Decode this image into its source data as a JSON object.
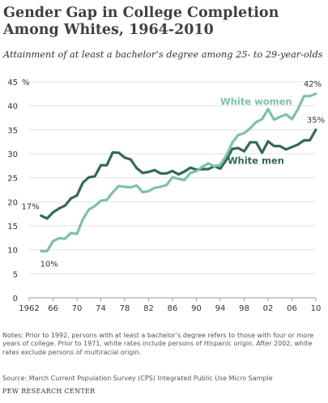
{
  "title": "Gender Gap in College Completion Among Whites, 1964-2010",
  "subtitle": "Attainment of at least a bachelor’s degree among 25- to 29-year-olds",
  "notes": "Notes: Prior to 1992, persons with at least a bachelor’s degree refers to those with four or more years of college. Prior to 1971, white rates include persons of Hispanic origin. After 2002, white rates exclude persons of multiracial origin.",
  "source": "Source: March Current Population Survey (CPS) Integrated Public Use Micro Sample",
  "credit": "PEW RESEARCH CENTER",
  "colors": {
    "white_men": "#336a52",
    "white_women": "#7fc2a2"
  },
  "chart_data": {
    "type": "line",
    "ylim": [
      0,
      45
    ],
    "xlim": [
      1962,
      2010
    ],
    "y_unit_label": "%",
    "yticks": [
      0,
      5,
      10,
      15,
      20,
      25,
      30,
      35,
      40,
      45
    ],
    "xticks": [
      {
        "value": 1962,
        "label": "1962"
      },
      {
        "value": 1966,
        "label": "66"
      },
      {
        "value": 1970,
        "label": "70"
      },
      {
        "value": 1974,
        "label": "74"
      },
      {
        "value": 1978,
        "label": "78"
      },
      {
        "value": 1982,
        "label": "82"
      },
      {
        "value": 1986,
        "label": "86"
      },
      {
        "value": 1990,
        "label": "90"
      },
      {
        "value": 1994,
        "label": "94"
      },
      {
        "value": 1998,
        "label": "98"
      },
      {
        "value": 2002,
        "label": "02"
      },
      {
        "value": 2006,
        "label": "06"
      },
      {
        "value": 2010,
        "label": "10"
      }
    ],
    "x": [
      1964,
      1965,
      1966,
      1967,
      1968,
      1969,
      1970,
      1971,
      1972,
      1973,
      1974,
      1975,
      1976,
      1977,
      1978,
      1979,
      1980,
      1981,
      1982,
      1983,
      1984,
      1985,
      1986,
      1987,
      1988,
      1989,
      1990,
      1991,
      1992,
      1993,
      1994,
      1995,
      1996,
      1997,
      1998,
      1999,
      2000,
      2001,
      2002,
      2003,
      2004,
      2005,
      2006,
      2007,
      2008,
      2009,
      2010
    ],
    "series": [
      {
        "name": "White men",
        "values": [
          17.1,
          16.5,
          17.8,
          18.6,
          19.2,
          20.7,
          21.3,
          24.0,
          25.1,
          25.3,
          27.6,
          27.6,
          30.3,
          30.2,
          29.2,
          28.8,
          27.0,
          26.0,
          26.2,
          26.6,
          25.9,
          25.9,
          26.4,
          25.7,
          26.3,
          27.1,
          26.7,
          26.8,
          26.8,
          27.4,
          26.9,
          28.7,
          31.0,
          31.2,
          30.5,
          32.4,
          32.4,
          30.2,
          32.6,
          31.6,
          31.6,
          30.9,
          31.4,
          31.9,
          32.8,
          32.8,
          35.0
        ],
        "start_label": "17%",
        "end_label": "35%",
        "label": "White men"
      },
      {
        "name": "White women",
        "values": [
          9.7,
          9.7,
          11.8,
          12.4,
          12.3,
          13.5,
          13.3,
          16.4,
          18.4,
          19.1,
          20.2,
          20.4,
          22.0,
          23.3,
          23.1,
          23.0,
          23.4,
          22.0,
          22.2,
          22.9,
          23.1,
          23.5,
          25.1,
          24.8,
          24.5,
          26.0,
          26.4,
          27.3,
          28.0,
          27.4,
          27.7,
          29.6,
          32.3,
          33.9,
          34.3,
          35.3,
          36.6,
          37.2,
          39.3,
          37.1,
          37.7,
          38.2,
          37.2,
          39.3,
          42.0,
          42.0,
          42.5
        ],
        "start_label": "10%",
        "end_label": "42%",
        "label": "White women"
      }
    ]
  }
}
